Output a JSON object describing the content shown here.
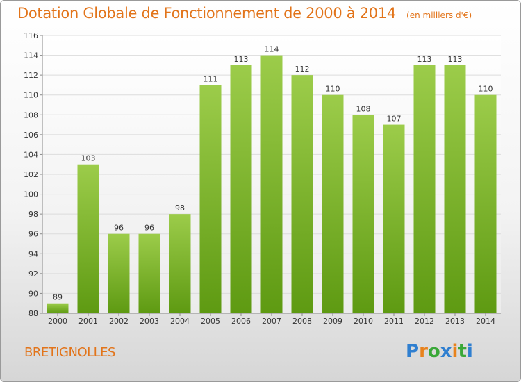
{
  "chart_data": {
    "type": "bar",
    "title": "Dotation Globale de Fonctionnement de 2000 à 2014",
    "subtitle": "(en milliers d'€)",
    "categories": [
      "2000",
      "2001",
      "2002",
      "2003",
      "2004",
      "2005",
      "2006",
      "2007",
      "2008",
      "2009",
      "2010",
      "2011",
      "2012",
      "2013",
      "2014"
    ],
    "values": [
      89,
      103,
      96,
      96,
      98,
      111,
      113,
      114,
      112,
      110,
      108,
      107,
      113,
      113,
      110
    ],
    "ylim": [
      88,
      116
    ],
    "yticks": [
      88,
      90,
      92,
      94,
      96,
      98,
      100,
      102,
      104,
      106,
      108,
      110,
      112,
      114,
      116
    ],
    "grid": true,
    "bar_color_top": "#9ccc4a",
    "bar_color_bottom": "#5e9a12"
  },
  "footer": {
    "commune": "BRETIGNOLLES",
    "logo_letters": [
      {
        "ch": "P",
        "color": "#2f7fd0"
      },
      {
        "ch": "r",
        "color": "#e8821c"
      },
      {
        "ch": "o",
        "color": "#3aa838"
      },
      {
        "ch": "x",
        "color": "#2f7fd0"
      },
      {
        "ch": "i",
        "color": "#e8821c"
      },
      {
        "ch": "t",
        "color": "#3aa838"
      },
      {
        "ch": "i",
        "color": "#2f7fd0"
      }
    ]
  }
}
